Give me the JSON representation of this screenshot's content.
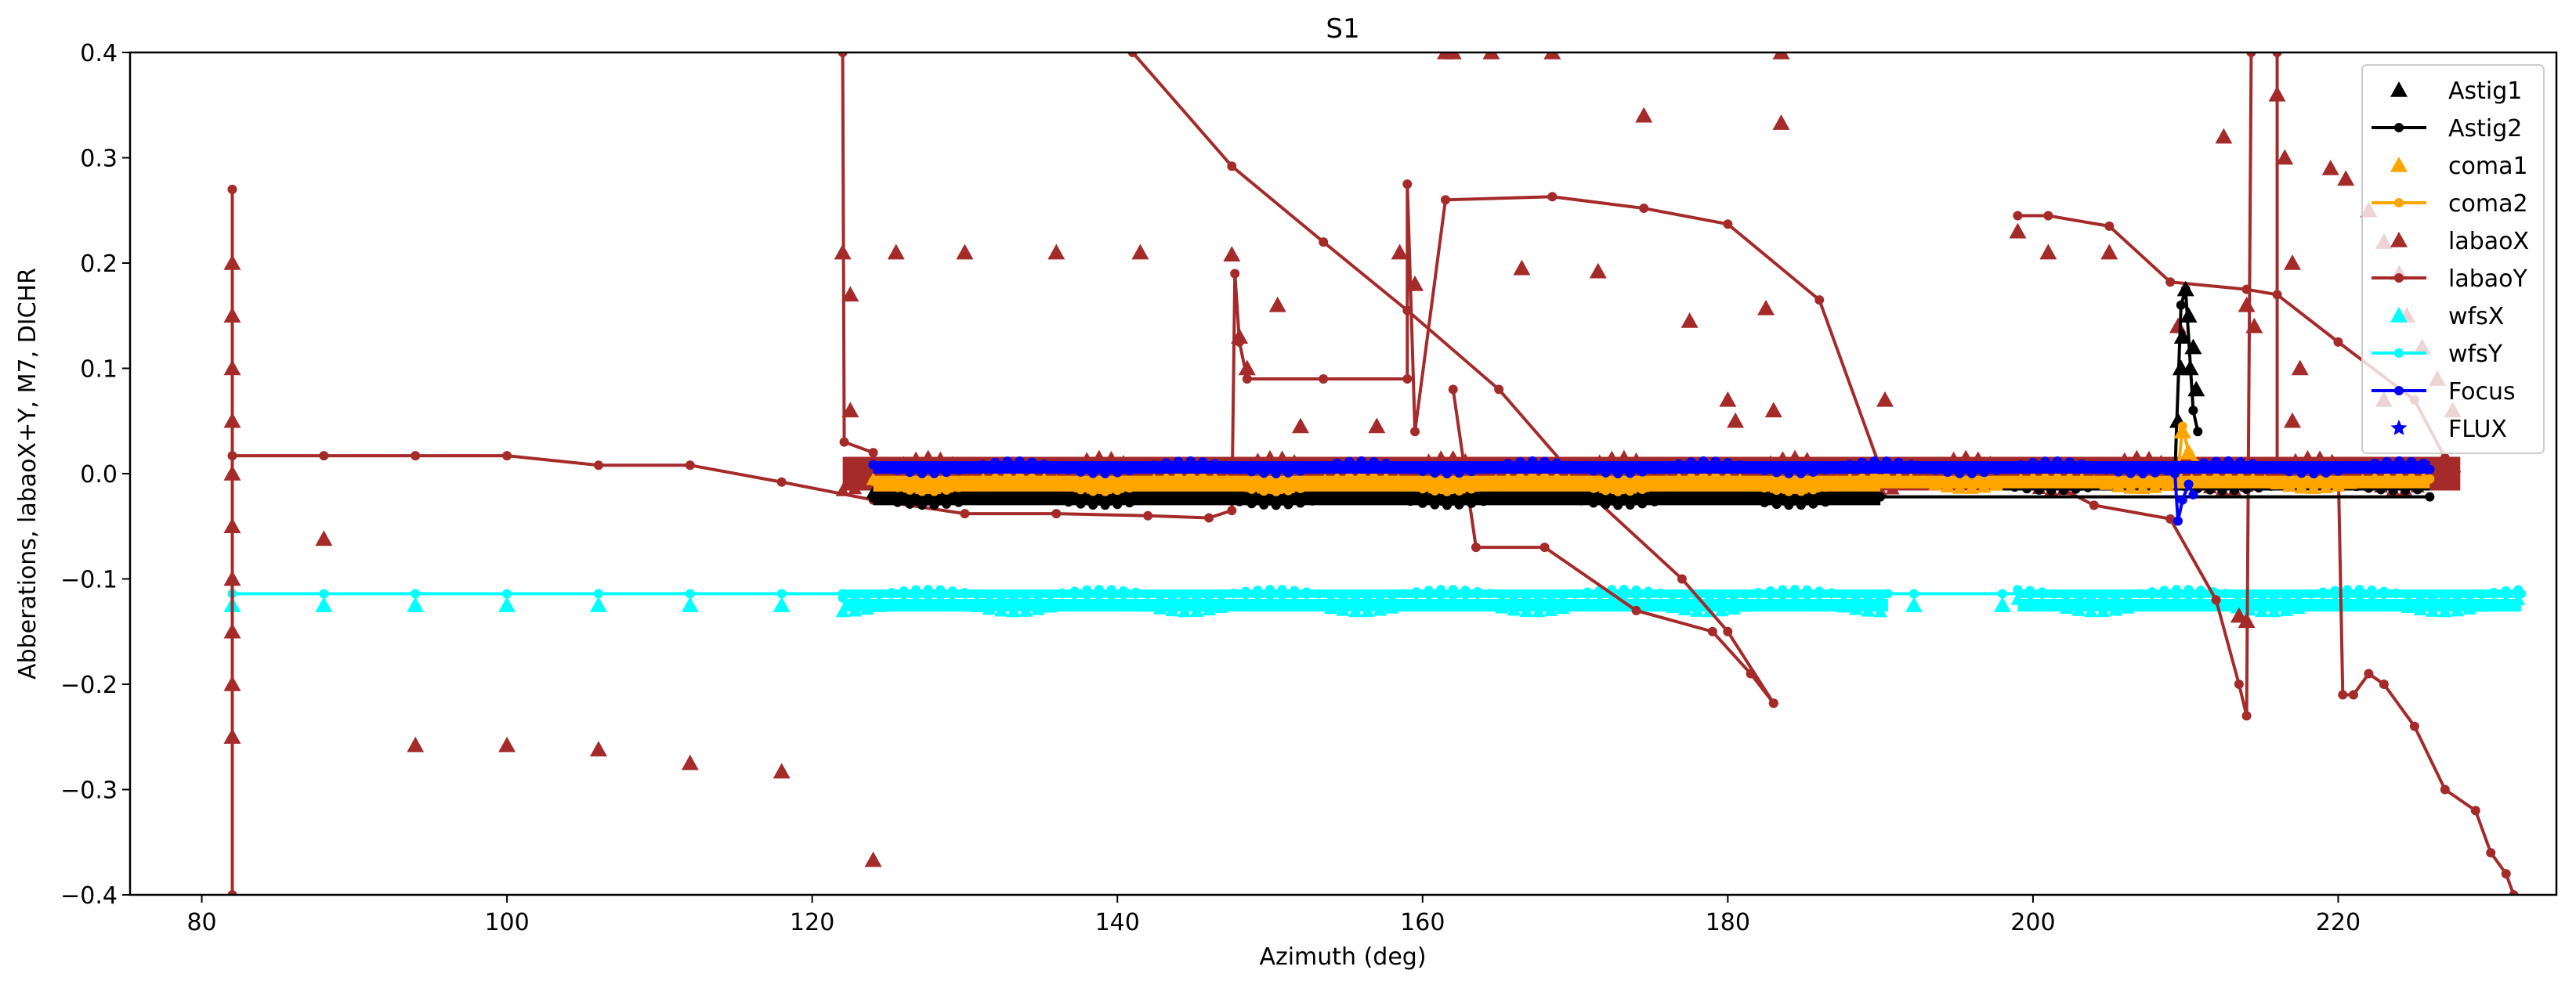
{
  "chart_data": {
    "type": "scatter",
    "title": "S1",
    "xlabel": "Azimuth (deg)",
    "ylabel": "Abberations, labaoX+Y, M7, DICHR",
    "xlim": [
      75.3,
      234.3
    ],
    "ylim": [
      -0.4,
      0.4
    ],
    "xticks": [
      80,
      100,
      120,
      140,
      160,
      180,
      200,
      220
    ],
    "yticks": [
      -0.4,
      -0.3,
      -0.2,
      -0.1,
      0.0,
      0.1,
      0.2,
      0.3,
      0.4
    ],
    "xtick_labels": [
      "80",
      "100",
      "120",
      "140",
      "160",
      "180",
      "200",
      "220"
    ],
    "ytick_labels": [
      "−0.4",
      "−0.3",
      "−0.2",
      "−0.1",
      "0.0",
      "0.1",
      "0.2",
      "0.3",
      "0.4"
    ],
    "grid": false,
    "legend_position": "top-right",
    "legend": [
      {
        "label": "Astig1",
        "color": "#000000",
        "style": "triangle"
      },
      {
        "label": "Astig2",
        "color": "#000000",
        "style": "line-dot"
      },
      {
        "label": "coma1",
        "color": "#ffa500",
        "style": "triangle"
      },
      {
        "label": "coma2",
        "color": "#ffa500",
        "style": "line-dot"
      },
      {
        "label": "labaoX",
        "color": "#a52a2a",
        "style": "triangle"
      },
      {
        "label": "labaoY",
        "color": "#a52a2a",
        "style": "line-dot"
      },
      {
        "label": "wfsX",
        "color": "#00ffff",
        "style": "triangle"
      },
      {
        "label": "wfsY",
        "color": "#00ffff",
        "style": "line-dot"
      },
      {
        "label": "Focus",
        "color": "#0000ff",
        "style": "line-dot"
      },
      {
        "label": "FLUX",
        "color": "#0000ff",
        "style": "star"
      }
    ],
    "series": [
      {
        "name": "wfsY",
        "color": "#00ffff",
        "kind": "line",
        "segments": [
          [
            [
              82,
              -0.114
            ],
            [
              88,
              -0.114
            ],
            [
              94,
              -0.114
            ],
            [
              100,
              -0.114
            ],
            [
              106,
              -0.114
            ],
            [
              112,
              -0.114
            ],
            [
              118,
              -0.114
            ],
            [
              122,
              -0.114
            ],
            [
              190.5,
              -0.114
            ],
            [
              192.2,
              -0.114
            ],
            [
              198,
              -0.114
            ],
            [
              232,
              -0.114
            ]
          ]
        ],
        "bands": [
          {
            "x_range": [
              122,
              190.5
            ],
            "y_center": -0.114,
            "spread": 0.004
          },
          {
            "x_range": [
              199,
              232
            ],
            "y_center": -0.114,
            "spread": 0.004
          }
        ]
      },
      {
        "name": "wfsX",
        "color": "#00ffff",
        "kind": "triangle",
        "points": [
          [
            82,
            -0.125
          ],
          [
            88,
            -0.125
          ],
          [
            94,
            -0.125
          ],
          [
            100,
            -0.125
          ],
          [
            106,
            -0.125
          ],
          [
            112,
            -0.125
          ],
          [
            118,
            -0.125
          ],
          [
            192.2,
            -0.125
          ],
          [
            198,
            -0.125
          ]
        ],
        "bands": [
          {
            "x_range": [
              122,
              190.5
            ],
            "y_center": -0.125,
            "spread": 0.006
          },
          {
            "x_range": [
              199,
              232
            ],
            "y_center": -0.125,
            "spread": 0.006
          }
        ]
      },
      {
        "name": "labaoY",
        "color": "#a52a2a",
        "kind": "line",
        "segments": [
          [
            [
              82,
              -0.4
            ],
            [
              82,
              0.27
            ]
          ],
          [
            [
              82,
              0.017
            ],
            [
              88,
              0.017
            ],
            [
              94,
              0.017
            ],
            [
              100,
              0.017
            ],
            [
              106,
              0.008
            ],
            [
              112,
              0.008
            ],
            [
              118,
              -0.008
            ],
            [
              124,
              -0.025
            ],
            [
              130,
              -0.038
            ],
            [
              136,
              -0.038
            ],
            [
              142,
              -0.04
            ],
            [
              146,
              -0.042
            ],
            [
              147.5,
              -0.035
            ],
            [
              147.7,
              0.19
            ],
            [
              148,
              0.125
            ],
            [
              148.5,
              0.09
            ],
            [
              153.5,
              0.09
            ],
            [
              159,
              0.09
            ],
            [
              159,
              0.275
            ],
            [
              159.5,
              0.04
            ],
            [
              161.5,
              0.26
            ],
            [
              168.5,
              0.263
            ],
            [
              174.5,
              0.252
            ],
            [
              180,
              0.237
            ],
            [
              186,
              0.165
            ],
            [
              190,
              0.005
            ]
          ],
          [
            [
              122,
              0.4
            ],
            [
              122.1,
              0.03
            ],
            [
              124,
              0.02
            ]
          ],
          [
            [
              141,
              0.4
            ],
            [
              147.5,
              0.292
            ],
            [
              153.5,
              0.22
            ],
            [
              159,
              0.155
            ],
            [
              165,
              0.08
            ],
            [
              171,
              -0.02
            ],
            [
              177,
              -0.1
            ],
            [
              180,
              -0.15
            ],
            [
              183,
              -0.218
            ]
          ],
          [
            [
              162,
              0.08
            ],
            [
              163.5,
              -0.07
            ],
            [
              168,
              -0.07
            ],
            [
              174,
              -0.13
            ],
            [
              179,
              -0.15
            ],
            [
              181.5,
              -0.19
            ],
            [
              183,
              -0.218
            ]
          ],
          [
            [
              199,
              0.245
            ],
            [
              201,
              0.245
            ],
            [
              205,
              0.235
            ],
            [
              209,
              0.182
            ],
            [
              214,
              0.175
            ],
            [
              216,
              0.17
            ],
            [
              220,
              0.125
            ],
            [
              225,
              0.07
            ],
            [
              227,
              0.015
            ]
          ],
          [
            [
              199,
              0.007
            ],
            [
              204,
              -0.03
            ],
            [
              209,
              -0.043
            ],
            [
              212,
              -0.12
            ],
            [
              213.5,
              -0.2
            ],
            [
              214,
              -0.23
            ],
            [
              214.3,
              0.4
            ]
          ],
          [
            [
              216,
              0.4
            ],
            [
              216,
              -0.005
            ]
          ],
          [
            [
              220,
              0.01
            ],
            [
              220.3,
              -0.21
            ],
            [
              221,
              -0.21
            ],
            [
              222,
              -0.19
            ],
            [
              223,
              -0.2
            ],
            [
              225,
              -0.24
            ],
            [
              227,
              -0.3
            ],
            [
              229,
              -0.32
            ],
            [
              230,
              -0.36
            ],
            [
              231,
              -0.38
            ],
            [
              231.5,
              -0.4
            ]
          ]
        ],
        "bands": [
          {
            "x_range": [
              124,
              227
            ],
            "y_center": 0.002,
            "spread": 0.008
          }
        ]
      },
      {
        "name": "labaoX",
        "color": "#a52a2a",
        "kind": "triangle",
        "points": [
          [
            82,
            0.2
          ],
          [
            82,
            0.15
          ],
          [
            82,
            0.1
          ],
          [
            82,
            0.05
          ],
          [
            82,
            0.0
          ],
          [
            82,
            -0.05
          ],
          [
            82,
            -0.1
          ],
          [
            82,
            -0.15
          ],
          [
            82,
            -0.2
          ],
          [
            82,
            -0.25
          ],
          [
            88,
            -0.062
          ],
          [
            94,
            -0.258
          ],
          [
            100,
            -0.258
          ],
          [
            106,
            -0.262
          ],
          [
            112,
            -0.275
          ],
          [
            118,
            -0.283
          ],
          [
            124,
            -0.367
          ],
          [
            122,
            0.21
          ],
          [
            122.5,
            0.17
          ],
          [
            122.5,
            0.06
          ],
          [
            125.5,
            0.21
          ],
          [
            130,
            0.21
          ],
          [
            136,
            0.21
          ],
          [
            141.5,
            0.21
          ],
          [
            147.5,
            0.208
          ],
          [
            148,
            0.13
          ],
          [
            148.5,
            0.1
          ],
          [
            150.5,
            0.16
          ],
          [
            152,
            0.045
          ],
          [
            157,
            0.045
          ],
          [
            158.5,
            0.21
          ],
          [
            159.5,
            0.18
          ],
          [
            161.5,
            0.4
          ],
          [
            162,
            0.4
          ],
          [
            164.5,
            0.4
          ],
          [
            168.5,
            0.4
          ],
          [
            174.5,
            0.34
          ],
          [
            183.5,
            0.4
          ],
          [
            183.5,
            0.333
          ],
          [
            166.5,
            0.195
          ],
          [
            171.5,
            0.192
          ],
          [
            177.5,
            0.145
          ],
          [
            182.5,
            0.157
          ],
          [
            180,
            0.07
          ],
          [
            180.5,
            0.05
          ],
          [
            183,
            0.06
          ],
          [
            190.3,
            0.07
          ],
          [
            199,
            0.23
          ],
          [
            201,
            0.21
          ],
          [
            205,
            0.21
          ],
          [
            209.5,
            0.14
          ],
          [
            212.5,
            0.32
          ],
          [
            214,
            0.16
          ],
          [
            214.5,
            0.14
          ],
          [
            216,
            0.36
          ],
          [
            216.5,
            0.3
          ],
          [
            217,
            0.2
          ],
          [
            217.5,
            0.1
          ],
          [
            217,
            0.05
          ],
          [
            219.5,
            0.29
          ],
          [
            220.5,
            0.28
          ],
          [
            222,
            0.25
          ],
          [
            223,
            0.22
          ],
          [
            224,
            0.19
          ],
          [
            224.5,
            0.15
          ],
          [
            225.5,
            0.12
          ],
          [
            223,
            0.07
          ],
          [
            226.5,
            0.09
          ],
          [
            227.5,
            0.06
          ],
          [
            213.5,
            -0.135
          ],
          [
            214,
            -0.14
          ]
        ],
        "bands": [
          {
            "x_range": [
              122,
              228
            ],
            "y_center": 0.0,
            "spread": 0.016
          }
        ]
      },
      {
        "name": "Astig2",
        "color": "#000000",
        "kind": "line",
        "segments": [
          [
            [
              190,
              -0.022
            ],
            [
              226,
              -0.022
            ]
          ],
          [
            [
              209.3,
              0.0
            ],
            [
              209.7,
              0.16
            ],
            [
              210,
              0.175
            ],
            [
              210.5,
              0.06
            ],
            [
              210.8,
              0.04
            ]
          ]
        ],
        "bands": [
          {
            "x_range": [
              124,
              190
            ],
            "y_center": -0.025,
            "spread": 0.005
          },
          {
            "x_range": [
              198,
              226
            ],
            "y_center": -0.012,
            "spread": 0.004
          }
        ]
      },
      {
        "name": "Astig1",
        "color": "#000000",
        "kind": "triangle",
        "points": [
          [
            209.5,
            0.05
          ],
          [
            209.7,
            0.1
          ],
          [
            209.8,
            0.13
          ],
          [
            210,
            0.175
          ],
          [
            210.2,
            0.15
          ],
          [
            210.5,
            0.12
          ],
          [
            210.7,
            0.08
          ],
          [
            210.3,
            0.1
          ]
        ],
        "bands": [
          {
            "x_range": [
              124,
              190
            ],
            "y_center": -0.02,
            "spread": 0.005
          }
        ]
      },
      {
        "name": "coma2",
        "color": "#ffa500",
        "kind": "line",
        "segments": [
          [
            [
              190,
              -0.005
            ],
            [
              226,
              -0.005
            ]
          ],
          [
            [
              209.5,
              0.0
            ],
            [
              209.8,
              0.045
            ],
            [
              210.2,
              0.02
            ],
            [
              210.6,
              0.01
            ]
          ]
        ],
        "bands": [
          {
            "x_range": [
              124,
              190
            ],
            "y_center": -0.01,
            "spread": 0.007
          }
        ]
      },
      {
        "name": "coma1",
        "color": "#ffa500",
        "kind": "triangle",
        "points": [
          [
            209.8,
            0.04
          ],
          [
            210.2,
            0.02
          ]
        ],
        "bands": [
          {
            "x_range": [
              124,
              226
            ],
            "y_center": -0.008,
            "spread": 0.006
          }
        ]
      },
      {
        "name": "Focus",
        "color": "#0000ff",
        "kind": "line",
        "segments": [
          [
            [
              190,
              0.005
            ],
            [
              226,
              0.004
            ]
          ],
          [
            [
              209.3,
              0.0
            ],
            [
              209.5,
              -0.045
            ],
            [
              209.8,
              -0.025
            ],
            [
              210.2,
              -0.01
            ],
            [
              210.5,
              -0.02
            ]
          ]
        ],
        "bands": [
          {
            "x_range": [
              124,
              226
            ],
            "y_center": 0.006,
            "spread": 0.006
          }
        ]
      },
      {
        "name": "FLUX",
        "color": "#0000ff",
        "kind": "star",
        "points": [],
        "bands": []
      }
    ]
  }
}
